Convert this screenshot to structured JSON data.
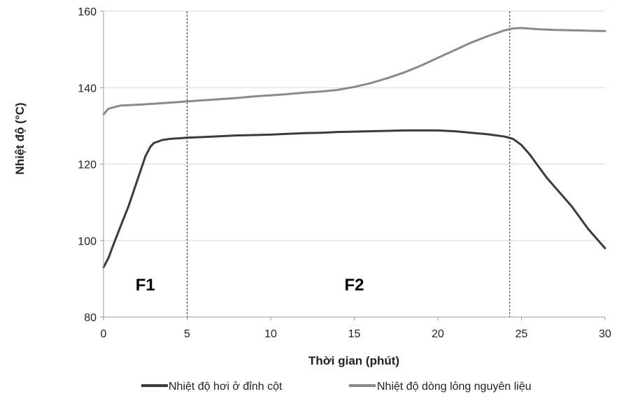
{
  "chart_data": {
    "type": "line",
    "xlabel": "Thời gian (phút)",
    "ylabel": "Nhiệt độ (°C)",
    "xlim": [
      0,
      30
    ],
    "ylim": [
      80,
      160
    ],
    "x_ticks": [
      0,
      5,
      10,
      15,
      20,
      25,
      30
    ],
    "y_ticks": [
      80,
      100,
      120,
      140,
      160
    ],
    "grid": "horizontal",
    "legend_position": "bottom",
    "series": [
      {
        "name": "Nhiệt độ hơi ở đỉnh cột",
        "color": "#3b3b3b",
        "x": [
          0,
          0.3,
          0.6,
          1,
          1.5,
          2,
          2.5,
          2.8,
          3,
          3.5,
          4,
          5,
          6,
          7,
          8,
          9,
          10,
          11,
          12,
          13,
          14,
          15,
          16,
          17,
          18,
          19,
          20,
          21,
          22,
          23,
          24,
          24.5,
          25,
          25.5,
          26,
          26.5,
          27,
          28,
          29,
          29.5,
          30
        ],
        "y": [
          93,
          95.5,
          99,
          103.5,
          109,
          115.5,
          122,
          124.5,
          125.5,
          126.3,
          126.6,
          126.9,
          127.1,
          127.3,
          127.5,
          127.6,
          127.7,
          127.9,
          128.1,
          128.2,
          128.4,
          128.5,
          128.6,
          128.7,
          128.8,
          128.8,
          128.8,
          128.6,
          128.2,
          127.8,
          127.2,
          126.6,
          125,
          122.5,
          119.5,
          116.5,
          114,
          109,
          103,
          100.5,
          98
        ]
      },
      {
        "name": "Nhiệt độ dòng lỏng nguyên liệu",
        "color": "#8a8a8a",
        "x": [
          0,
          0.3,
          1,
          2,
          3,
          4,
          5,
          6,
          7,
          8,
          9,
          10,
          11,
          12,
          13,
          14,
          15,
          16,
          17,
          18,
          19,
          20,
          21,
          22,
          23,
          24,
          24.5,
          25,
          26,
          27,
          28,
          29,
          30
        ],
        "y": [
          133,
          134.5,
          135.3,
          135.5,
          135.8,
          136.1,
          136.4,
          136.7,
          137,
          137.3,
          137.7,
          138,
          138.3,
          138.7,
          139,
          139.4,
          140.2,
          141.2,
          142.5,
          144,
          145.8,
          147.8,
          149.8,
          151.8,
          153.5,
          155,
          155.5,
          155.6,
          155.3,
          155.1,
          155,
          154.9,
          154.8
        ]
      }
    ],
    "reference_lines": [
      {
        "axis": "x",
        "value": 5,
        "style": "dashed"
      },
      {
        "axis": "x",
        "value": 24.3,
        "style": "dashed"
      }
    ],
    "annotations": [
      {
        "text": "F1",
        "x": 2.5,
        "y": 87
      },
      {
        "text": "F2",
        "x": 15,
        "y": 87
      }
    ]
  }
}
